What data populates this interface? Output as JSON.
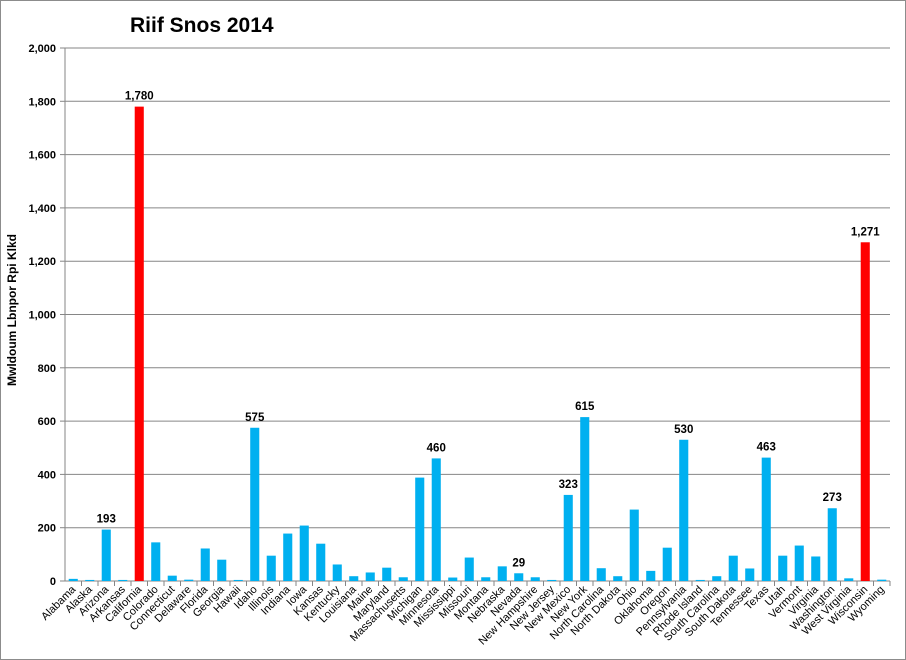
{
  "chart_data": {
    "type": "bar",
    "title": "Riif Snos 2014",
    "ylabel": "Mwldoum Lbnpor Rpi Klkd",
    "xlabel": "",
    "ylim": [
      0,
      2000
    ],
    "yticks": [
      "0",
      "200",
      "400",
      "600",
      "800",
      "1,000",
      "1,200",
      "1,400",
      "1,600",
      "1,800",
      "2,000"
    ],
    "grid": true,
    "categories": [
      "Alabama",
      "Alaska",
      "Arizona",
      "Arkansas",
      "California",
      "Colorado",
      "Connecticut",
      "Delaware",
      "Florida",
      "Georgia",
      "Hawaii",
      "Idaho",
      "Illinois",
      "Indiana",
      "Iowa",
      "Kansas",
      "Kentucky",
      "Louisiana",
      "Maine",
      "Maryland",
      "Massachusetts",
      "Michigan",
      "Minnesota",
      "Mississippi",
      "Missouri",
      "Montana",
      "Nebraska",
      "Nevada",
      "New Hampshire",
      "New Jersey",
      "New Mexico",
      "New York",
      "North Carolina",
      "North Dakota",
      "Ohio",
      "Oklahoma",
      "Oregon",
      "Pennsylvania",
      "Rhode Island",
      "South Carolina",
      "South Dakota",
      "Tennessee",
      "Texas",
      "Utah",
      "Vermont",
      "Virginia",
      "Washington",
      "West Virginia",
      "Wisconsin",
      "Wyoming"
    ],
    "values": [
      8,
      4,
      193,
      4,
      1780,
      145,
      20,
      5,
      122,
      80,
      4,
      575,
      95,
      178,
      208,
      140,
      62,
      18,
      32,
      50,
      14,
      388,
      460,
      13,
      88,
      14,
      55,
      29,
      14,
      4,
      323,
      615,
      48,
      18,
      268,
      38,
      125,
      530,
      4,
      18,
      95,
      47,
      463,
      95,
      133,
      92,
      273,
      10,
      1271,
      5
    ],
    "data_labels": [
      {
        "category": "Arizona",
        "text": "193"
      },
      {
        "category": "California",
        "text": "1,780"
      },
      {
        "category": "Idaho",
        "text": "575"
      },
      {
        "category": "Minnesota",
        "text": "460"
      },
      {
        "category": "Nevada",
        "text": "29"
      },
      {
        "category": "New Mexico",
        "text": "323"
      },
      {
        "category": "New York",
        "text": "615"
      },
      {
        "category": "Pennsylvania",
        "text": "530"
      },
      {
        "category": "Texas",
        "text": "463"
      },
      {
        "category": "Washington",
        "text": "273"
      },
      {
        "category": "Wisconsin",
        "text": "1,271"
      }
    ],
    "colors": {
      "default": "#00b0f0",
      "highlight": "#ff0000",
      "grid": "#868686"
    },
    "highlighted": [
      "California",
      "Wisconsin"
    ]
  }
}
